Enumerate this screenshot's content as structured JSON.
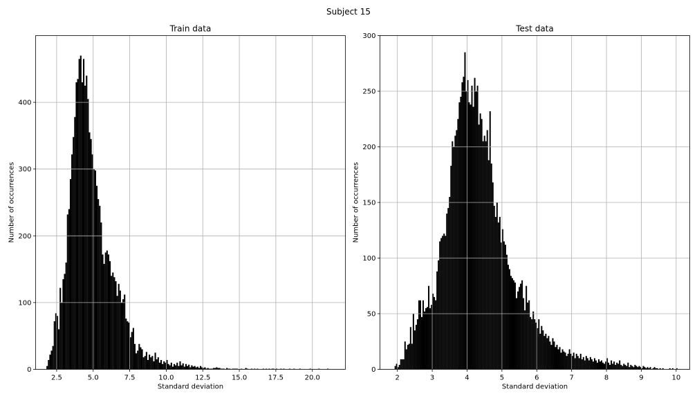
{
  "figure": {
    "title": "Subject 15"
  },
  "chart_data": [
    {
      "type": "bar",
      "title": "Train data",
      "xlabel": "Standard deviation",
      "ylabel": "Number of occurrences",
      "xlim": [
        1.06,
        22.26
      ],
      "ylim": [
        0,
        500
      ],
      "xticks": [
        2.5,
        5.0,
        7.5,
        10.0,
        12.5,
        15.0,
        17.5,
        20.0
      ],
      "xtick_labels": [
        "2.5",
        "5.0",
        "7.5",
        "10.0",
        "12.5",
        "15.0",
        "17.5",
        "20.0"
      ],
      "yticks": [
        0,
        100,
        200,
        300,
        400
      ],
      "grid": true,
      "bin_width": 0.1,
      "bins": [
        [
          1.85,
          5
        ],
        [
          1.95,
          14
        ],
        [
          2.05,
          22
        ],
        [
          2.15,
          28
        ],
        [
          2.25,
          35
        ],
        [
          2.35,
          72
        ],
        [
          2.45,
          84
        ],
        [
          2.55,
          80
        ],
        [
          2.65,
          60
        ],
        [
          2.75,
          122
        ],
        [
          2.85,
          100
        ],
        [
          2.95,
          135
        ],
        [
          3.05,
          143
        ],
        [
          3.15,
          160
        ],
        [
          3.25,
          232
        ],
        [
          3.35,
          240
        ],
        [
          3.45,
          285
        ],
        [
          3.55,
          322
        ],
        [
          3.65,
          348
        ],
        [
          3.75,
          378
        ],
        [
          3.85,
          430
        ],
        [
          3.95,
          435
        ],
        [
          4.05,
          465
        ],
        [
          4.15,
          470
        ],
        [
          4.25,
          430
        ],
        [
          4.35,
          465
        ],
        [
          4.45,
          425
        ],
        [
          4.55,
          440
        ],
        [
          4.65,
          405
        ],
        [
          4.75,
          355
        ],
        [
          4.85,
          345
        ],
        [
          4.95,
          322
        ],
        [
          5.05,
          300
        ],
        [
          5.15,
          298
        ],
        [
          5.25,
          275
        ],
        [
          5.35,
          255
        ],
        [
          5.45,
          245
        ],
        [
          5.55,
          220
        ],
        [
          5.65,
          172
        ],
        [
          5.75,
          158
        ],
        [
          5.85,
          175
        ],
        [
          5.95,
          178
        ],
        [
          6.05,
          172
        ],
        [
          6.15,
          162
        ],
        [
          6.25,
          140
        ],
        [
          6.35,
          145
        ],
        [
          6.45,
          138
        ],
        [
          6.55,
          132
        ],
        [
          6.65,
          110
        ],
        [
          6.75,
          128
        ],
        [
          6.85,
          118
        ],
        [
          6.95,
          100
        ],
        [
          7.05,
          105
        ],
        [
          7.15,
          112
        ],
        [
          7.25,
          76
        ],
        [
          7.35,
          72
        ],
        [
          7.45,
          70
        ],
        [
          7.55,
          48
        ],
        [
          7.65,
          56
        ],
        [
          7.75,
          62
        ],
        [
          7.85,
          38
        ],
        [
          7.95,
          24
        ],
        [
          8.05,
          28
        ],
        [
          8.15,
          38
        ],
        [
          8.25,
          33
        ],
        [
          8.35,
          30
        ],
        [
          8.45,
          18
        ],
        [
          8.55,
          20
        ],
        [
          8.65,
          26
        ],
        [
          8.75,
          14
        ],
        [
          8.85,
          22
        ],
        [
          8.95,
          18
        ],
        [
          9.05,
          20
        ],
        [
          9.15,
          12
        ],
        [
          9.25,
          25
        ],
        [
          9.35,
          15
        ],
        [
          9.45,
          18
        ],
        [
          9.55,
          10
        ],
        [
          9.65,
          14
        ],
        [
          9.75,
          8
        ],
        [
          9.85,
          12
        ],
        [
          9.95,
          10
        ],
        [
          10.05,
          14
        ],
        [
          10.15,
          8
        ],
        [
          10.25,
          6
        ],
        [
          10.35,
          10
        ],
        [
          10.45,
          4
        ],
        [
          10.55,
          8
        ],
        [
          10.65,
          6
        ],
        [
          10.75,
          10
        ],
        [
          10.85,
          5
        ],
        [
          10.95,
          12
        ],
        [
          11.05,
          6
        ],
        [
          11.15,
          9
        ],
        [
          11.25,
          4
        ],
        [
          11.35,
          8
        ],
        [
          11.45,
          5
        ],
        [
          11.55,
          7
        ],
        [
          11.65,
          3
        ],
        [
          11.75,
          6
        ],
        [
          11.85,
          4
        ],
        [
          11.95,
          5
        ],
        [
          12.05,
          3
        ],
        [
          12.15,
          4
        ],
        [
          12.25,
          2
        ],
        [
          12.35,
          5
        ],
        [
          12.45,
          3
        ],
        [
          12.55,
          2
        ],
        [
          12.65,
          3
        ],
        [
          12.75,
          1
        ],
        [
          12.85,
          2
        ],
        [
          12.95,
          1
        ],
        [
          13.05,
          1
        ],
        [
          13.15,
          1
        ],
        [
          13.25,
          2
        ],
        [
          13.35,
          2
        ],
        [
          13.45,
          3
        ],
        [
          13.55,
          2
        ],
        [
          13.65,
          2
        ],
        [
          13.75,
          1
        ],
        [
          13.85,
          1
        ],
        [
          13.95,
          1
        ],
        [
          14.15,
          2
        ],
        [
          14.25,
          1
        ],
        [
          14.35,
          1
        ],
        [
          14.55,
          1
        ],
        [
          14.65,
          1
        ],
        [
          14.75,
          1
        ],
        [
          14.85,
          1
        ],
        [
          15.15,
          1
        ],
        [
          15.45,
          2
        ],
        [
          15.55,
          1
        ],
        [
          15.85,
          1
        ],
        [
          16.05,
          1
        ],
        [
          16.25,
          1
        ],
        [
          16.65,
          1
        ],
        [
          16.85,
          1
        ],
        [
          17.05,
          1
        ],
        [
          17.25,
          1
        ],
        [
          17.35,
          1
        ],
        [
          17.55,
          1
        ],
        [
          17.85,
          1
        ],
        [
          18.05,
          1
        ],
        [
          18.45,
          1
        ],
        [
          18.75,
          1
        ],
        [
          19.15,
          1
        ],
        [
          19.85,
          1
        ],
        [
          20.45,
          1
        ],
        [
          21.05,
          1
        ]
      ]
    },
    {
      "type": "bar",
      "title": "Test data",
      "xlabel": "Standard deviation",
      "ylabel": "Number of occurrences",
      "xlim": [
        1.5,
        10.39
      ],
      "ylim": [
        0,
        300
      ],
      "xticks": [
        2,
        3,
        4,
        5,
        6,
        7,
        8,
        9,
        10
      ],
      "xtick_labels": [
        "2",
        "3",
        "4",
        "5",
        "6",
        "7",
        "8",
        "9",
        "10"
      ],
      "yticks": [
        0,
        50,
        100,
        150,
        200,
        250,
        300
      ],
      "grid": true,
      "bin_width": 0.04,
      "bins": [
        [
          1.94,
          3
        ],
        [
          1.98,
          5
        ],
        [
          2.02,
          2
        ],
        [
          2.06,
          4
        ],
        [
          2.1,
          9
        ],
        [
          2.14,
          9
        ],
        [
          2.18,
          9
        ],
        [
          2.22,
          25
        ],
        [
          2.26,
          18
        ],
        [
          2.3,
          22
        ],
        [
          2.34,
          23
        ],
        [
          2.38,
          38
        ],
        [
          2.42,
          23
        ],
        [
          2.46,
          50
        ],
        [
          2.5,
          35
        ],
        [
          2.54,
          40
        ],
        [
          2.58,
          45
        ],
        [
          2.62,
          62
        ],
        [
          2.66,
          62
        ],
        [
          2.7,
          47
        ],
        [
          2.74,
          62
        ],
        [
          2.78,
          52
        ],
        [
          2.82,
          55
        ],
        [
          2.86,
          56
        ],
        [
          2.9,
          75
        ],
        [
          2.94,
          55
        ],
        [
          2.98,
          58
        ],
        [
          3.02,
          68
        ],
        [
          3.06,
          65
        ],
        [
          3.1,
          62
        ],
        [
          3.14,
          88
        ],
        [
          3.18,
          98
        ],
        [
          3.22,
          115
        ],
        [
          3.26,
          118
        ],
        [
          3.3,
          120
        ],
        [
          3.34,
          122
        ],
        [
          3.38,
          120
        ],
        [
          3.42,
          140
        ],
        [
          3.46,
          145
        ],
        [
          3.5,
          155
        ],
        [
          3.54,
          183
        ],
        [
          3.58,
          205
        ],
        [
          3.62,
          200
        ],
        [
          3.66,
          210
        ],
        [
          3.7,
          215
        ],
        [
          3.74,
          225
        ],
        [
          3.78,
          240
        ],
        [
          3.82,
          245
        ],
        [
          3.86,
          258
        ],
        [
          3.9,
          263
        ],
        [
          3.94,
          285
        ],
        [
          3.98,
          250
        ],
        [
          4.02,
          260
        ],
        [
          4.06,
          240
        ],
        [
          4.1,
          238
        ],
        [
          4.14,
          255
        ],
        [
          4.18,
          236
        ],
        [
          4.22,
          262
        ],
        [
          4.26,
          250
        ],
        [
          4.3,
          255
        ],
        [
          4.34,
          220
        ],
        [
          4.38,
          230
        ],
        [
          4.42,
          225
        ],
        [
          4.46,
          205
        ],
        [
          4.5,
          210
        ],
        [
          4.54,
          205
        ],
        [
          4.58,
          215
        ],
        [
          4.62,
          188
        ],
        [
          4.66,
          232
        ],
        [
          4.7,
          185
        ],
        [
          4.74,
          168
        ],
        [
          4.78,
          147
        ],
        [
          4.82,
          137
        ],
        [
          4.86,
          150
        ],
        [
          4.9,
          132
        ],
        [
          4.94,
          137
        ],
        [
          4.98,
          114
        ],
        [
          5.02,
          126
        ],
        [
          5.06,
          115
        ],
        [
          5.1,
          112
        ],
        [
          5.14,
          103
        ],
        [
          5.18,
          94
        ],
        [
          5.22,
          90
        ],
        [
          5.26,
          84
        ],
        [
          5.3,
          82
        ],
        [
          5.34,
          80
        ],
        [
          5.38,
          78
        ],
        [
          5.42,
          64
        ],
        [
          5.46,
          70
        ],
        [
          5.5,
          74
        ],
        [
          5.54,
          77
        ],
        [
          5.58,
          80
        ],
        [
          5.62,
          64
        ],
        [
          5.66,
          53
        ],
        [
          5.7,
          75
        ],
        [
          5.74,
          60
        ],
        [
          5.78,
          62
        ],
        [
          5.82,
          47
        ],
        [
          5.86,
          45
        ],
        [
          5.9,
          52
        ],
        [
          5.94,
          45
        ],
        [
          5.98,
          42
        ],
        [
          6.02,
          37
        ],
        [
          6.06,
          45
        ],
        [
          6.1,
          32
        ],
        [
          6.14,
          39
        ],
        [
          6.18,
          35
        ],
        [
          6.22,
          30
        ],
        [
          6.26,
          32
        ],
        [
          6.3,
          28
        ],
        [
          6.34,
          30
        ],
        [
          6.38,
          25
        ],
        [
          6.42,
          22
        ],
        [
          6.46,
          28
        ],
        [
          6.5,
          25
        ],
        [
          6.54,
          20
        ],
        [
          6.58,
          22
        ],
        [
          6.62,
          18
        ],
        [
          6.66,
          20
        ],
        [
          6.7,
          15
        ],
        [
          6.74,
          18
        ],
        [
          6.78,
          16
        ],
        [
          6.82,
          15
        ],
        [
          6.86,
          12
        ],
        [
          6.9,
          14
        ],
        [
          6.94,
          18
        ],
        [
          6.98,
          14
        ],
        [
          7.02,
          12
        ],
        [
          7.06,
          15
        ],
        [
          7.1,
          10
        ],
        [
          7.14,
          14
        ],
        [
          7.18,
          12
        ],
        [
          7.22,
          10
        ],
        [
          7.26,
          14
        ],
        [
          7.3,
          9
        ],
        [
          7.34,
          11
        ],
        [
          7.38,
          8
        ],
        [
          7.42,
          12
        ],
        [
          7.46,
          10
        ],
        [
          7.5,
          8
        ],
        [
          7.54,
          11
        ],
        [
          7.58,
          9
        ],
        [
          7.62,
          7
        ],
        [
          7.66,
          10
        ],
        [
          7.7,
          8
        ],
        [
          7.74,
          6
        ],
        [
          7.78,
          9
        ],
        [
          7.82,
          7
        ],
        [
          7.86,
          8
        ],
        [
          7.9,
          6
        ],
        [
          7.94,
          5
        ],
        [
          7.98,
          7
        ],
        [
          8.02,
          10
        ],
        [
          8.06,
          6
        ],
        [
          8.1,
          4
        ],
        [
          8.14,
          8
        ],
        [
          8.18,
          5
        ],
        [
          8.22,
          7
        ],
        [
          8.26,
          4
        ],
        [
          8.3,
          6
        ],
        [
          8.34,
          5
        ],
        [
          8.38,
          8
        ],
        [
          8.42,
          4
        ],
        [
          8.46,
          3
        ],
        [
          8.5,
          5
        ],
        [
          8.54,
          4
        ],
        [
          8.58,
          3
        ],
        [
          8.62,
          6
        ],
        [
          8.66,
          2
        ],
        [
          8.7,
          4
        ],
        [
          8.74,
          3
        ],
        [
          8.78,
          2
        ],
        [
          8.82,
          4
        ],
        [
          8.86,
          3
        ],
        [
          8.9,
          2
        ],
        [
          8.94,
          3
        ],
        [
          8.98,
          2
        ],
        [
          9.02,
          1
        ],
        [
          9.06,
          3
        ],
        [
          9.1,
          2
        ],
        [
          9.14,
          1
        ],
        [
          9.18,
          2
        ],
        [
          9.22,
          1
        ],
        [
          9.26,
          2
        ],
        [
          9.34,
          1
        ],
        [
          9.38,
          2
        ],
        [
          9.42,
          1
        ],
        [
          9.46,
          1
        ],
        [
          9.54,
          1
        ],
        [
          9.62,
          1
        ],
        [
          9.82,
          1
        ],
        [
          9.9,
          1
        ],
        [
          10.02,
          1
        ]
      ]
    }
  ]
}
